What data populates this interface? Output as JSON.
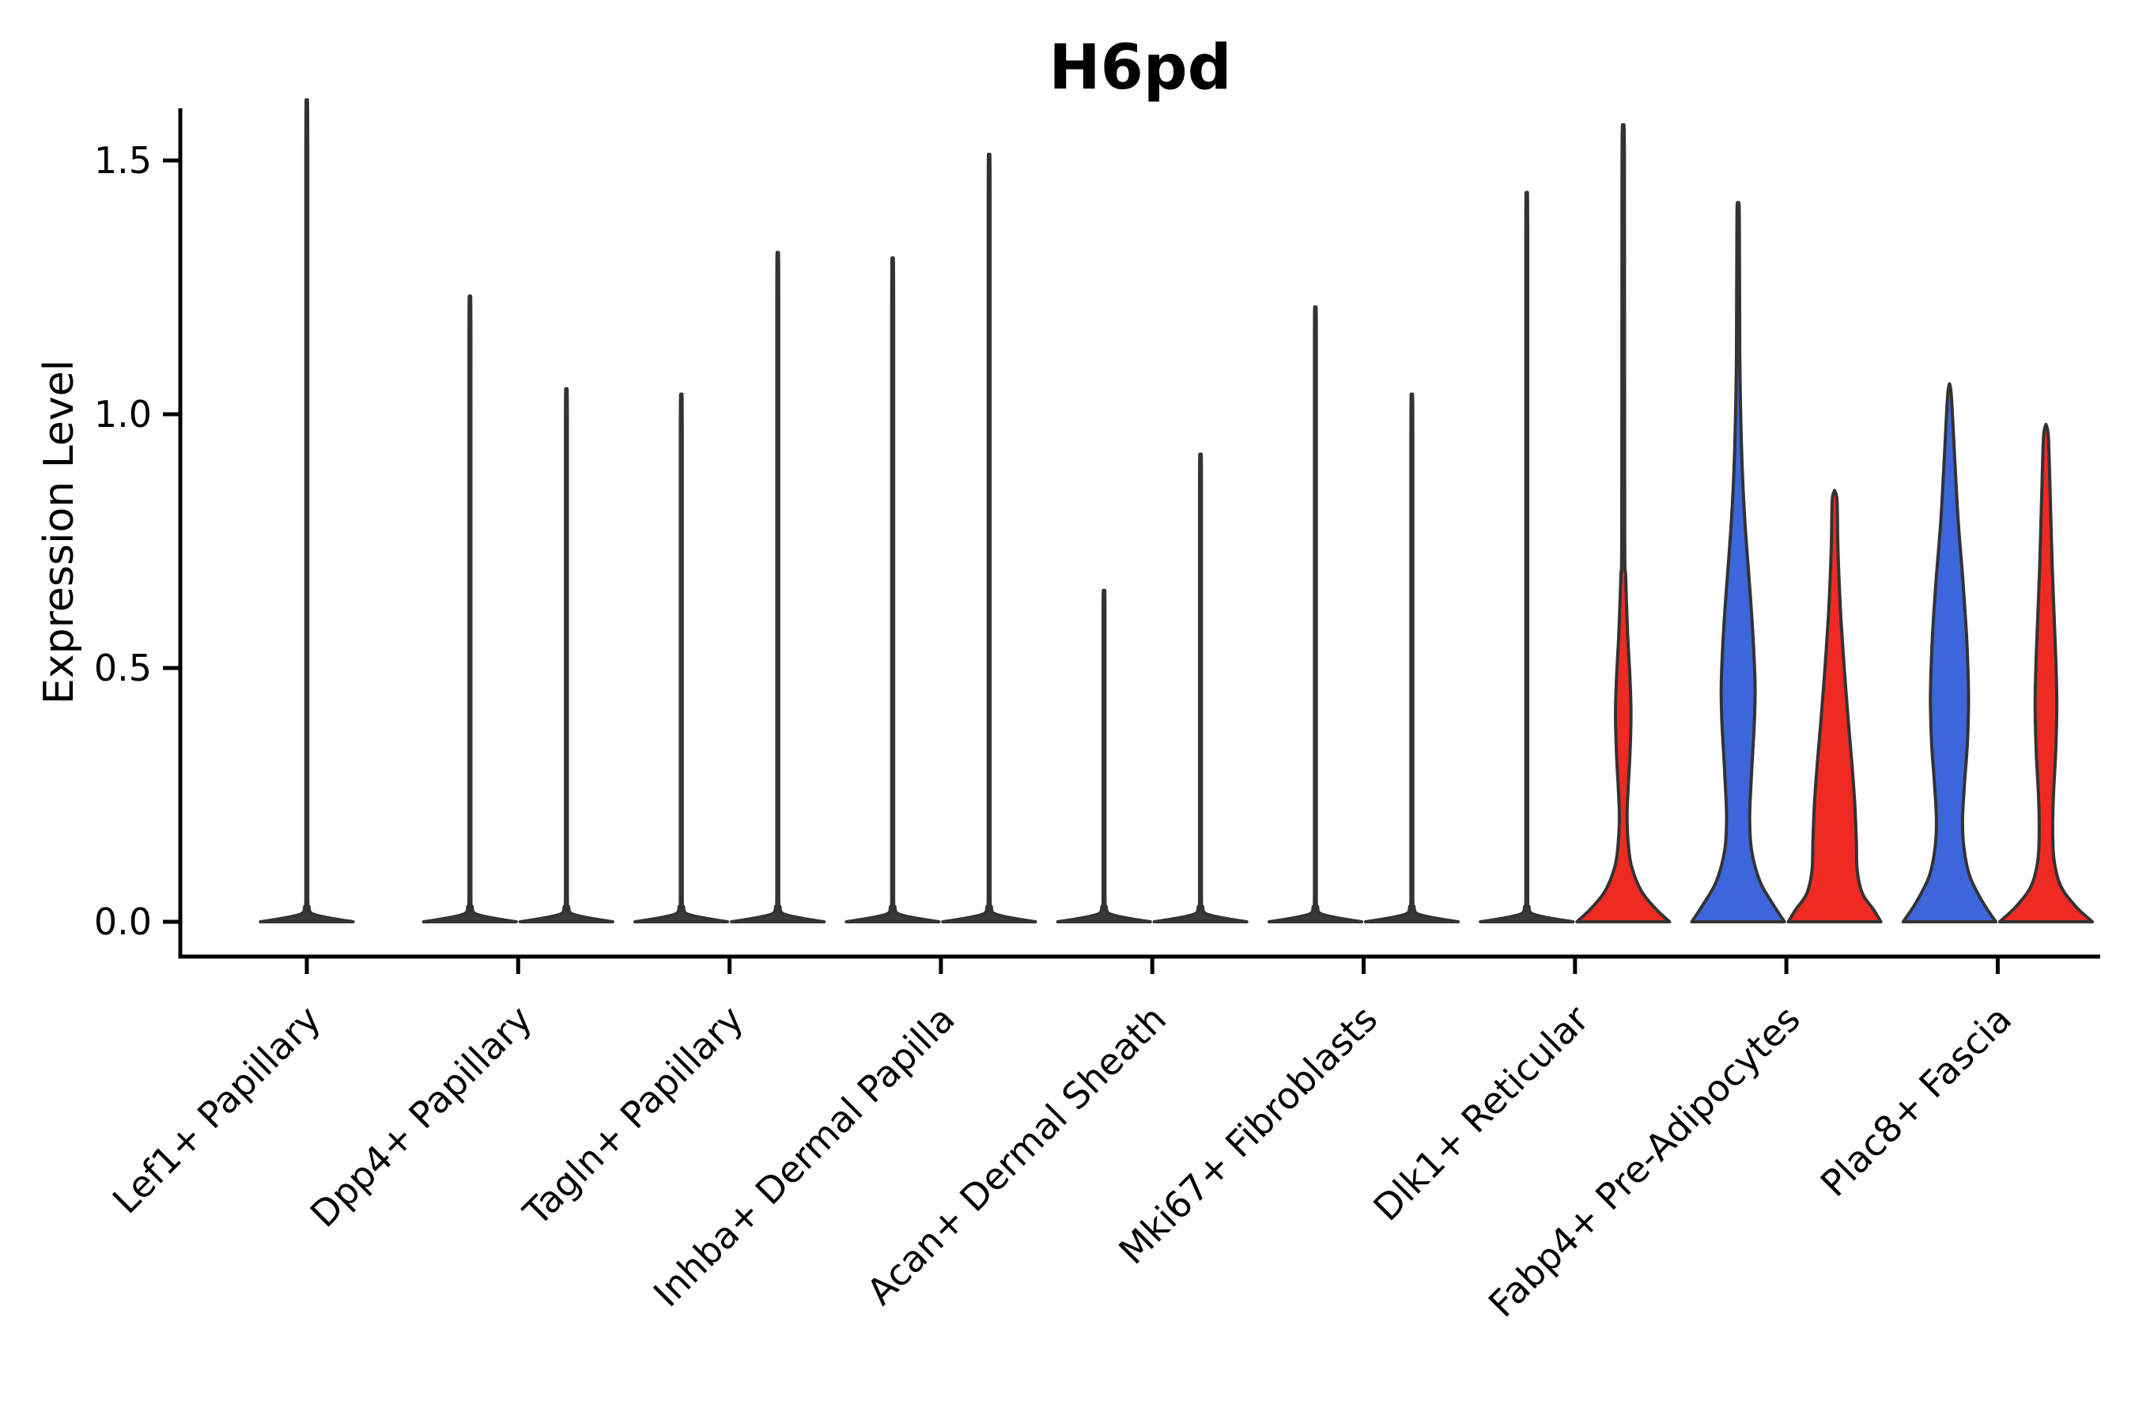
{
  "title": "H6pd",
  "axes": {
    "ylabel": "Expression Level",
    "ytick_labels": [
      "0.0",
      "0.5",
      "1.0",
      "1.5"
    ],
    "ytick_values": [
      0,
      0.5,
      1.0,
      1.5
    ]
  },
  "chart_data": {
    "type": "violin",
    "title": "H6pd",
    "xlabel": "",
    "ylabel": "Expression Level",
    "ylim": [
      0,
      1.6
    ],
    "yticks": [
      0,
      0.5,
      1.0,
      1.5
    ],
    "grid": false,
    "legend": "none",
    "colors": {
      "blue": "#3D66DC",
      "red": "#EF2A22",
      "edge": "#333333",
      "flat_base": "#3a3a3a"
    },
    "categories": [
      "Lef1+ Papillary",
      "Dpp4+ Papillary",
      "Tagln+ Papillary",
      "Inhba+ Dermal Papilla",
      "Acan+ Dermal Sheath",
      "Mki67+ Fibroblasts",
      "Dlk1+ Reticular",
      "Fabp4+ Pre-Adipocytes",
      "Plac8+ Fascia"
    ],
    "violins": [
      {
        "category_index": 0,
        "category": "Lef1+ Papillary",
        "side": "center",
        "group": null,
        "max_expression": 1.52,
        "shape": "spike"
      },
      {
        "category_index": 1,
        "category": "Dpp4+ Papillary",
        "side": "left",
        "group": "blue",
        "max_expression": 1.16,
        "shape": "spike"
      },
      {
        "category_index": 1,
        "category": "Dpp4+ Papillary",
        "side": "right",
        "group": "red",
        "max_expression": 0.99,
        "shape": "spike"
      },
      {
        "category_index": 2,
        "category": "Tagln+ Papillary",
        "side": "left",
        "group": "blue",
        "max_expression": 0.98,
        "shape": "spike"
      },
      {
        "category_index": 2,
        "category": "Tagln+ Papillary",
        "side": "right",
        "group": "red",
        "max_expression": 1.24,
        "shape": "spike"
      },
      {
        "category_index": 3,
        "category": "Inhba+ Dermal Papilla",
        "side": "left",
        "group": "blue",
        "max_expression": 1.23,
        "shape": "spike"
      },
      {
        "category_index": 3,
        "category": "Inhba+ Dermal Papilla",
        "side": "right",
        "group": "red",
        "max_expression": 1.42,
        "shape": "spike"
      },
      {
        "category_index": 4,
        "category": "Acan+ Dermal Sheath",
        "side": "left",
        "group": "blue",
        "max_expression": 0.62,
        "shape": "spike"
      },
      {
        "category_index": 4,
        "category": "Acan+ Dermal Sheath",
        "side": "right",
        "group": "red",
        "max_expression": 0.87,
        "shape": "spike"
      },
      {
        "category_index": 5,
        "category": "Mki67+ Fibroblasts",
        "side": "left",
        "group": "blue",
        "max_expression": 1.14,
        "shape": "spike"
      },
      {
        "category_index": 5,
        "category": "Mki67+ Fibroblasts",
        "side": "right",
        "group": "red",
        "max_expression": 0.98,
        "shape": "spike"
      },
      {
        "category_index": 6,
        "category": "Dlk1+ Reticular",
        "side": "left",
        "group": "blue",
        "max_expression": 1.35,
        "shape": "spike"
      },
      {
        "category_index": 6,
        "category": "Dlk1+ Reticular",
        "side": "right",
        "group": "red",
        "max_expression": 1.53,
        "shape": "profile",
        "profile": [
          [
            1.53,
            0
          ],
          [
            1.51,
            0.025
          ],
          [
            0.78,
            0.03
          ],
          [
            0.68,
            0.05
          ],
          [
            0.57,
            0.09
          ],
          [
            0.48,
            0.14
          ],
          [
            0.41,
            0.16
          ],
          [
            0.33,
            0.14
          ],
          [
            0.26,
            0.1
          ],
          [
            0.21,
            0.08
          ],
          [
            0.16,
            0.1
          ],
          [
            0.11,
            0.17
          ],
          [
            0.06,
            0.38
          ],
          [
            0.025,
            0.68
          ],
          [
            0,
            0.96
          ]
        ]
      },
      {
        "category_index": 7,
        "category": "Fabp4+ Pre-Adipocytes",
        "side": "left",
        "group": "blue",
        "max_expression": 1.41,
        "shape": "profile",
        "profile": [
          [
            1.41,
            0
          ],
          [
            1.39,
            0.025
          ],
          [
            1.12,
            0.035
          ],
          [
            0.97,
            0.06
          ],
          [
            0.86,
            0.1
          ],
          [
            0.76,
            0.16
          ],
          [
            0.66,
            0.24
          ],
          [
            0.56,
            0.31
          ],
          [
            0.47,
            0.35
          ],
          [
            0.4,
            0.34
          ],
          [
            0.33,
            0.3
          ],
          [
            0.26,
            0.26
          ],
          [
            0.2,
            0.24
          ],
          [
            0.14,
            0.28
          ],
          [
            0.08,
            0.45
          ],
          [
            0.035,
            0.72
          ],
          [
            0,
            0.96
          ]
        ]
      },
      {
        "category_index": 7,
        "category": "Fabp4+ Pre-Adipocytes",
        "side": "right",
        "group": "red",
        "max_expression": 0.85,
        "shape": "profile",
        "profile": [
          [
            0.85,
            0
          ],
          [
            0.83,
            0.05
          ],
          [
            0.75,
            0.065
          ],
          [
            0.68,
            0.09
          ],
          [
            0.6,
            0.13
          ],
          [
            0.5,
            0.2
          ],
          [
            0.4,
            0.28
          ],
          [
            0.31,
            0.36
          ],
          [
            0.23,
            0.42
          ],
          [
            0.16,
            0.45
          ],
          [
            0.1,
            0.47
          ],
          [
            0.055,
            0.58
          ],
          [
            0.025,
            0.8
          ],
          [
            0,
            0.96
          ]
        ]
      },
      {
        "category_index": 8,
        "category": "Plac8+ Fascia",
        "side": "left",
        "group": "blue",
        "max_expression": 1.06,
        "shape": "profile",
        "profile": [
          [
            1.06,
            0
          ],
          [
            1.035,
            0.04
          ],
          [
            0.91,
            0.11
          ],
          [
            0.79,
            0.18
          ],
          [
            0.67,
            0.28
          ],
          [
            0.57,
            0.35
          ],
          [
            0.49,
            0.385
          ],
          [
            0.43,
            0.395
          ],
          [
            0.35,
            0.37
          ],
          [
            0.27,
            0.31
          ],
          [
            0.2,
            0.27
          ],
          [
            0.145,
            0.3
          ],
          [
            0.09,
            0.42
          ],
          [
            0.04,
            0.68
          ],
          [
            0,
            0.96
          ]
        ]
      },
      {
        "category_index": 8,
        "category": "Plac8+ Fascia",
        "side": "right",
        "group": "red",
        "max_expression": 0.98,
        "shape": "profile",
        "profile": [
          [
            0.98,
            0
          ],
          [
            0.955,
            0.05
          ],
          [
            0.85,
            0.085
          ],
          [
            0.7,
            0.13
          ],
          [
            0.6,
            0.17
          ],
          [
            0.5,
            0.21
          ],
          [
            0.42,
            0.225
          ],
          [
            0.33,
            0.2
          ],
          [
            0.25,
            0.155
          ],
          [
            0.18,
            0.14
          ],
          [
            0.12,
            0.17
          ],
          [
            0.07,
            0.31
          ],
          [
            0.03,
            0.62
          ],
          [
            0,
            0.96
          ]
        ]
      }
    ]
  }
}
